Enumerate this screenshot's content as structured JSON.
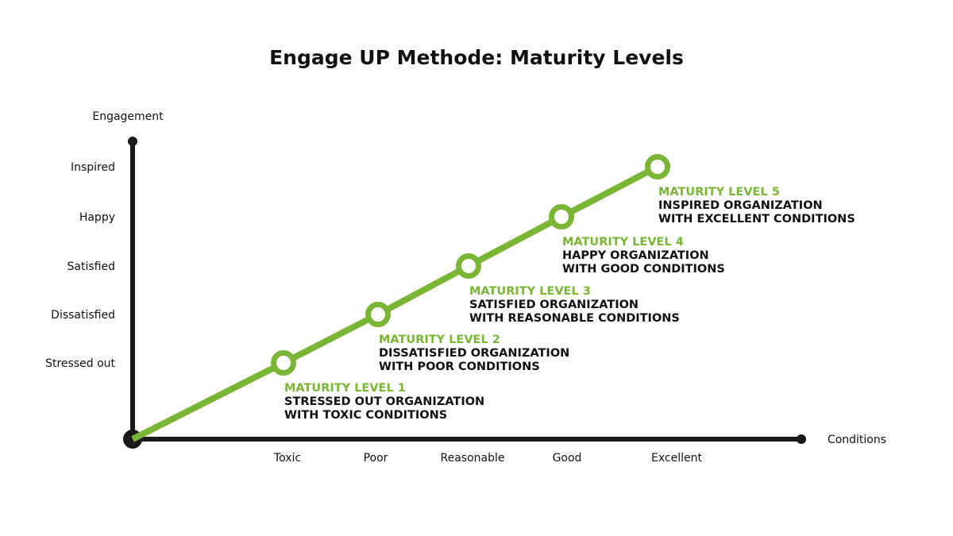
{
  "title": "Engage UP Methode: Maturity Levels",
  "colors": {
    "accent": "#7ab536",
    "axis": "#1a1a1a",
    "text": "#111111",
    "background": "#ffffff"
  },
  "chart_data": {
    "type": "line",
    "title": "Engage UP Methode: Maturity Levels",
    "xlabel": "Conditions",
    "ylabel": "Engagement",
    "x_ticks": [
      "Toxic",
      "Poor",
      "Reasonable",
      "Good",
      "Excellent"
    ],
    "y_ticks": [
      "Stressed out",
      "Dissatisfied",
      "Satisfied",
      "Happy",
      "Inspired"
    ],
    "grid": false,
    "series": [
      {
        "values": [
          {
            "x": "Toxic",
            "y": "Stressed out"
          },
          {
            "x": "Poor",
            "y": "Dissatisfied"
          },
          {
            "x": "Reasonable",
            "y": "Satisfied"
          },
          {
            "x": "Good",
            "y": "Happy"
          },
          {
            "x": "Excellent",
            "y": "Inspired"
          }
        ]
      }
    ],
    "annotations": [
      {
        "title": "MATURITY LEVEL 1",
        "line1": "STRESSED OUT ORGANIZATION",
        "line2": "WITH TOXIC CONDITIONS"
      },
      {
        "title": "MATURITY LEVEL 2",
        "line1": "DISSATISFIED ORGANIZATION",
        "line2": "WITH POOR CONDITIONS"
      },
      {
        "title": "MATURITY LEVEL 3",
        "line1": "SATISFIED ORGANIZATION",
        "line2": "WITH REASONABLE CONDITIONS"
      },
      {
        "title": "MATURITY LEVEL 4",
        "line1": "HAPPY ORGANIZATION",
        "line2": "WITH GOOD CONDITIONS"
      },
      {
        "title": "MATURITY LEVEL 5",
        "line1": "INSPIRED ORGANIZATION",
        "line2": "WITH EXCELLENT CONDITIONS"
      }
    ]
  }
}
